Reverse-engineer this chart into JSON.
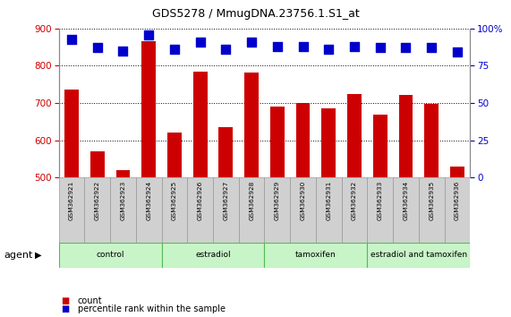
{
  "title": "GDS5278 / MmugDNA.23756.1.S1_at",
  "samples": [
    "GSM362921",
    "GSM362922",
    "GSM362923",
    "GSM362924",
    "GSM362925",
    "GSM362926",
    "GSM362927",
    "GSM362928",
    "GSM362929",
    "GSM362930",
    "GSM362931",
    "GSM362932",
    "GSM362933",
    "GSM362934",
    "GSM362935",
    "GSM362936"
  ],
  "counts": [
    735,
    570,
    520,
    865,
    620,
    785,
    635,
    782,
    690,
    700,
    685,
    725,
    670,
    722,
    698,
    530
  ],
  "percentile_ranks": [
    93,
    87,
    85,
    96,
    86,
    91,
    86,
    91,
    88,
    88,
    86,
    88,
    87,
    87,
    87,
    84
  ],
  "bar_color": "#cc0000",
  "dot_color": "#0000cc",
  "ylim_left": [
    500,
    900
  ],
  "ylim_right": [
    0,
    100
  ],
  "yticks_left": [
    500,
    600,
    700,
    800,
    900
  ],
  "yticks_right": [
    0,
    25,
    50,
    75,
    100
  ],
  "groups": [
    {
      "label": "control",
      "start": 0,
      "end": 4
    },
    {
      "label": "estradiol",
      "start": 4,
      "end": 8
    },
    {
      "label": "tamoxifen",
      "start": 8,
      "end": 12
    },
    {
      "label": "estradiol and tamoxifen",
      "start": 12,
      "end": 16
    }
  ],
  "group_color_light": "#c8f5c8",
  "group_color_mid": "#90ee90",
  "agent_label": "agent",
  "legend_count_color": "#cc0000",
  "legend_dot_color": "#0000cc",
  "bg_color": "#ffffff",
  "sample_bg_color": "#d0d0d0",
  "bar_width": 0.55,
  "dot_size": 55
}
